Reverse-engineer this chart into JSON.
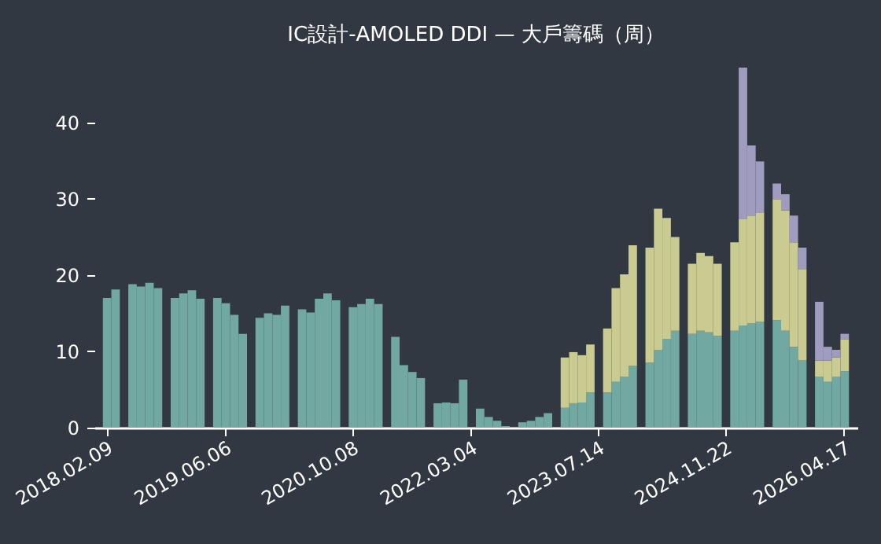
{
  "chart_data": {
    "type": "bar",
    "stacked": true,
    "title": "IC設計-AMOLED DDI — 大戶籌碼（周）",
    "categories": [
      "2018.02.09",
      null,
      null,
      null,
      null,
      null,
      null,
      null,
      null,
      null,
      null,
      null,
      null,
      null,
      "2019.06.06",
      null,
      null,
      null,
      null,
      null,
      null,
      null,
      null,
      null,
      null,
      null,
      null,
      null,
      null,
      "2020.10.08",
      null,
      null,
      null,
      null,
      null,
      null,
      null,
      null,
      null,
      null,
      null,
      null,
      null,
      "2022.03.04",
      null,
      null,
      null,
      null,
      null,
      null,
      null,
      null,
      null,
      null,
      null,
      null,
      null,
      null,
      "2023.07.14",
      null,
      null,
      null,
      null,
      null,
      null,
      null,
      null,
      null,
      null,
      null,
      null,
      null,
      null,
      "2024.11.22",
      null,
      null,
      null,
      null,
      null,
      null,
      null,
      null,
      null,
      null,
      null,
      null,
      null,
      "2026.04.17"
    ],
    "series": [
      {
        "color": "#72a8a2",
        "values": [
          17.0,
          18.1,
          null,
          18.8,
          18.5,
          19.0,
          18.3,
          null,
          17.0,
          17.6,
          18.0,
          16.9,
          null,
          17.0,
          16.3,
          14.8,
          12.3,
          null,
          14.4,
          15.0,
          14.8,
          16.0,
          null,
          15.5,
          15.1,
          16.9,
          17.6,
          16.7,
          null,
          15.8,
          16.2,
          16.9,
          16.2,
          null,
          11.9,
          8.2,
          7.3,
          6.5,
          null,
          3.2,
          3.3,
          3.2,
          6.3,
          null,
          2.5,
          1.4,
          0.9,
          0.2,
          null,
          0.7,
          0.9,
          1.4,
          1.9,
          null,
          2.6,
          3.2,
          3.3,
          4.6,
          null,
          4.6,
          6.0,
          6.7,
          8.1,
          null,
          8.5,
          10.2,
          11.6,
          12.7,
          null,
          12.3,
          12.7,
          12.5,
          12.0,
          null,
          12.7,
          13.4,
          13.7,
          13.9,
          null,
          14.1,
          12.7,
          10.6,
          8.8,
          null,
          6.7,
          6.0,
          6.7,
          7.4
        ]
      },
      {
        "color": "#c9cb91",
        "values": [
          null,
          null,
          null,
          null,
          null,
          null,
          null,
          null,
          null,
          null,
          null,
          null,
          null,
          null,
          null,
          null,
          null,
          null,
          null,
          null,
          null,
          null,
          null,
          null,
          null,
          null,
          null,
          null,
          null,
          null,
          null,
          null,
          null,
          null,
          null,
          null,
          null,
          null,
          null,
          null,
          null,
          null,
          null,
          null,
          null,
          null,
          null,
          null,
          null,
          null,
          null,
          null,
          null,
          null,
          6.6,
          6.7,
          6.2,
          6.3,
          null,
          8.4,
          12.3,
          13.4,
          15.8,
          null,
          15.1,
          18.5,
          15.9,
          12.3,
          null,
          9.2,
          10.2,
          10.0,
          9.5,
          null,
          11.6,
          13.9,
          14.1,
          14.3,
          null,
          15.8,
          15.8,
          13.7,
          12.0,
          null,
          2.1,
          2.8,
          2.5,
          4.2
        ]
      },
      {
        "color": "#a09cc0",
        "values": [
          null,
          null,
          null,
          null,
          null,
          null,
          null,
          null,
          null,
          null,
          null,
          null,
          null,
          null,
          null,
          null,
          null,
          null,
          null,
          null,
          null,
          null,
          null,
          null,
          null,
          null,
          null,
          null,
          null,
          null,
          null,
          null,
          null,
          null,
          null,
          null,
          null,
          null,
          null,
          null,
          null,
          null,
          null,
          null,
          null,
          null,
          null,
          null,
          null,
          null,
          null,
          null,
          null,
          null,
          null,
          null,
          null,
          null,
          null,
          null,
          null,
          null,
          null,
          null,
          null,
          null,
          null,
          null,
          null,
          null,
          null,
          null,
          null,
          null,
          null,
          19.9,
          9.2,
          6.7,
          null,
          2.1,
          2.1,
          3.5,
          2.8,
          null,
          7.7,
          1.8,
          1.0,
          0.7
        ]
      }
    ],
    "ylim": [
      0,
      47.2
    ],
    "yticks": [
      0,
      10,
      20,
      30,
      40
    ]
  }
}
